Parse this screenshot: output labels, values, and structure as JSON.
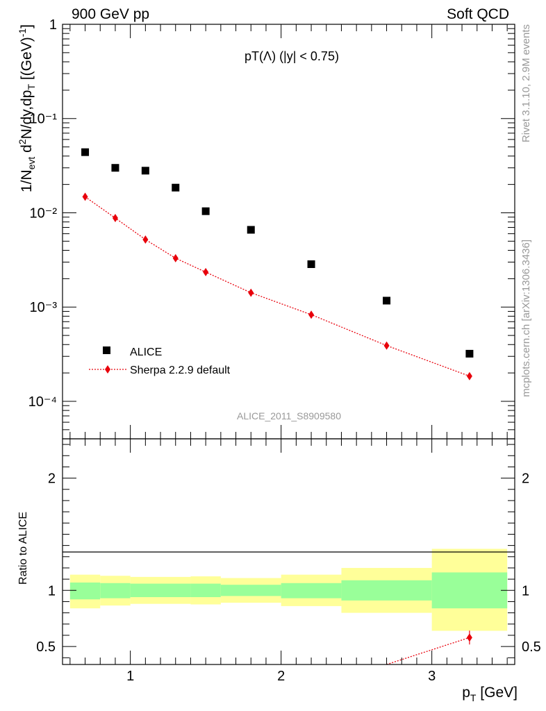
{
  "header": {
    "left": "900 GeV pp",
    "right": "Soft QCD"
  },
  "side_text": {
    "rivet": "Rivet 3.1.10,  2.9M events",
    "mcplots": "mcplots.cern.ch [arXiv:1306.3436]"
  },
  "plot_title": "pT(Λ) (|y| < 0.75)",
  "analysis_id": "ALICE_2011_S8909580",
  "colors": {
    "data": "#000000",
    "mc": "#e8000b",
    "band_inner": "#99ff99",
    "band_outer": "#ffff99"
  },
  "chart_data": [
    {
      "type": "scatter",
      "panel": "main",
      "xlabel": "p_T [GeV]",
      "ylabel": "1/N_evt d²N/dy,dp_T [(GeV)⁻¹]",
      "xlim": [
        0.55,
        3.55
      ],
      "ylim": [
        4e-05,
        1
      ],
      "yscale": "log",
      "y_tick_labels": [
        "10⁻⁴",
        "10⁻³",
        "10⁻²",
        "10⁻¹",
        "1"
      ],
      "legend_position": "lower-left",
      "series": [
        {
          "name": "ALICE",
          "marker": "square",
          "x": [
            0.7,
            0.9,
            1.1,
            1.3,
            1.5,
            1.8,
            2.2,
            2.7,
            3.25
          ],
          "y": [
            0.044,
            0.03,
            0.028,
            0.0185,
            0.0104,
            0.0066,
            0.00285,
            0.00117,
            0.00032
          ]
        },
        {
          "name": "Sherpa 2.2.9 default",
          "marker": "diamond",
          "line": "dotted",
          "x": [
            0.7,
            0.9,
            1.1,
            1.3,
            1.5,
            1.8,
            2.2,
            2.7,
            3.25
          ],
          "y": [
            0.0148,
            0.0088,
            0.0052,
            0.0033,
            0.00235,
            0.00142,
            0.00083,
            0.00039,
            0.000185
          ]
        }
      ]
    },
    {
      "type": "line",
      "panel": "ratio",
      "ylabel": "Ratio to ALICE",
      "xlabel": "p_T [GeV]",
      "xlim": [
        0.55,
        3.55
      ],
      "ylim": [
        0.34,
        2.35
      ],
      "x_ticks": [
        1,
        2,
        3
      ],
      "y_ticks": [
        0.5,
        1,
        2
      ],
      "bins": [
        {
          "x0": 0.6,
          "x1": 0.8,
          "inner": [
            0.92,
            1.07
          ],
          "outer": [
            0.84,
            1.14
          ]
        },
        {
          "x0": 0.8,
          "x1": 1.0,
          "inner": [
            0.93,
            1.065
          ],
          "outer": [
            0.865,
            1.13
          ]
        },
        {
          "x0": 1.0,
          "x1": 1.4,
          "inner": [
            0.94,
            1.06
          ],
          "outer": [
            0.88,
            1.12
          ]
        },
        {
          "x0": 1.4,
          "x1": 1.6,
          "inner": [
            0.94,
            1.06
          ],
          "outer": [
            0.875,
            1.125
          ]
        },
        {
          "x0": 1.6,
          "x1": 2.0,
          "inner": [
            0.95,
            1.05
          ],
          "outer": [
            0.89,
            1.11
          ]
        },
        {
          "x0": 2.0,
          "x1": 2.4,
          "inner": [
            0.93,
            1.065
          ],
          "outer": [
            0.86,
            1.14
          ]
        },
        {
          "x0": 2.4,
          "x1": 3.0,
          "inner": [
            0.91,
            1.09
          ],
          "outer": [
            0.8,
            1.2
          ]
        },
        {
          "x0": 3.0,
          "x1": 3.5,
          "inner": [
            0.84,
            1.16
          ],
          "outer": [
            0.64,
            1.37
          ]
        }
      ],
      "series": [
        {
          "name": "Sherpa 2.2.9 default",
          "x": [
            2.7,
            3.25
          ],
          "y": [
            0.33,
            0.58
          ],
          "visible_points": [
            {
              "x": 3.25,
              "y": 0.58
            }
          ]
        }
      ]
    }
  ]
}
